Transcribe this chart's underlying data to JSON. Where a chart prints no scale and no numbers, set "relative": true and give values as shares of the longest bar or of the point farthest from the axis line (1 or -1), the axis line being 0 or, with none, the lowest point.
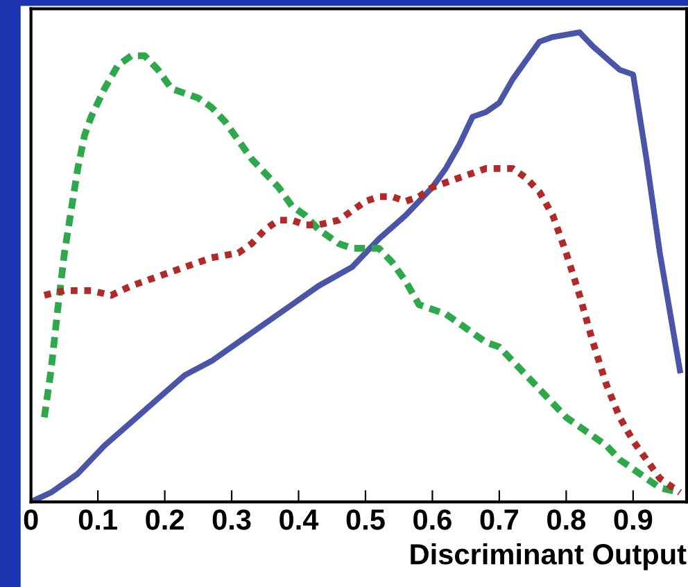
{
  "chart_data": {
    "type": "line",
    "xlabel": "Discriminant Output",
    "relative": true,
    "marker": "none",
    "xlim": [
      0,
      0.98
    ],
    "xticks": [
      0,
      0.1,
      0.2,
      0.3,
      0.4,
      0.5,
      0.6,
      0.7,
      0.8,
      0.9
    ],
    "series": [
      {
        "color": "#4a55a8",
        "line_style": "solid",
        "x": [
          0.0,
          0.03,
          0.07,
          0.11,
          0.15,
          0.19,
          0.23,
          0.27,
          0.31,
          0.35,
          0.39,
          0.43,
          0.48,
          0.52,
          0.56,
          0.6,
          0.62,
          0.64,
          0.66,
          0.68,
          0.7,
          0.72,
          0.74,
          0.76,
          0.78,
          0.82,
          0.84,
          0.88,
          0.9,
          0.92,
          0.94,
          0.97
        ],
        "values": [
          0,
          0.02,
          0.06,
          0.12,
          0.17,
          0.22,
          0.27,
          0.3,
          0.34,
          0.38,
          0.42,
          0.46,
          0.5,
          0.56,
          0.61,
          0.67,
          0.71,
          0.76,
          0.82,
          0.83,
          0.85,
          0.9,
          0.94,
          0.98,
          0.99,
          1.0,
          0.97,
          0.92,
          0.91,
          0.73,
          0.53,
          0.28
        ]
      },
      {
        "color": "#2ea84a",
        "line_style": "dashed",
        "x": [
          0.02,
          0.03,
          0.04,
          0.05,
          0.06,
          0.07,
          0.08,
          0.09,
          0.11,
          0.13,
          0.15,
          0.17,
          0.19,
          0.21,
          0.23,
          0.25,
          0.27,
          0.29,
          0.31,
          0.33,
          0.35,
          0.37,
          0.39,
          0.41,
          0.43,
          0.46,
          0.48,
          0.5,
          0.52,
          0.54,
          0.56,
          0.58,
          0.6,
          0.62,
          0.64,
          0.66,
          0.68,
          0.7,
          0.72,
          0.74,
          0.76,
          0.78,
          0.8,
          0.82,
          0.84,
          0.86,
          0.88,
          0.9,
          0.92,
          0.94,
          0.97
        ],
        "values": [
          0.18,
          0.28,
          0.41,
          0.53,
          0.62,
          0.71,
          0.78,
          0.82,
          0.88,
          0.93,
          0.95,
          0.95,
          0.92,
          0.88,
          0.87,
          0.86,
          0.84,
          0.81,
          0.77,
          0.73,
          0.7,
          0.67,
          0.63,
          0.61,
          0.58,
          0.55,
          0.54,
          0.54,
          0.54,
          0.51,
          0.47,
          0.42,
          0.41,
          0.4,
          0.38,
          0.36,
          0.34,
          0.33,
          0.3,
          0.27,
          0.24,
          0.21,
          0.18,
          0.16,
          0.14,
          0.12,
          0.09,
          0.07,
          0.05,
          0.03,
          0.02
        ]
      },
      {
        "color": "#b02a2a",
        "line_style": "dotted",
        "x": [
          0.02,
          0.05,
          0.09,
          0.12,
          0.15,
          0.19,
          0.23,
          0.27,
          0.31,
          0.33,
          0.35,
          0.37,
          0.39,
          0.41,
          0.43,
          0.46,
          0.48,
          0.5,
          0.52,
          0.54,
          0.56,
          0.58,
          0.6,
          0.62,
          0.64,
          0.66,
          0.68,
          0.7,
          0.72,
          0.74,
          0.76,
          0.78,
          0.8,
          0.82,
          0.84,
          0.86,
          0.88,
          0.9,
          0.92,
          0.94,
          0.97
        ],
        "values": [
          0.44,
          0.45,
          0.45,
          0.44,
          0.46,
          0.48,
          0.5,
          0.52,
          0.53,
          0.55,
          0.58,
          0.6,
          0.6,
          0.59,
          0.59,
          0.6,
          0.62,
          0.64,
          0.65,
          0.65,
          0.64,
          0.65,
          0.67,
          0.68,
          0.69,
          0.7,
          0.71,
          0.71,
          0.71,
          0.69,
          0.66,
          0.61,
          0.53,
          0.44,
          0.34,
          0.25,
          0.18,
          0.13,
          0.09,
          0.05,
          0.02
        ]
      }
    ]
  }
}
